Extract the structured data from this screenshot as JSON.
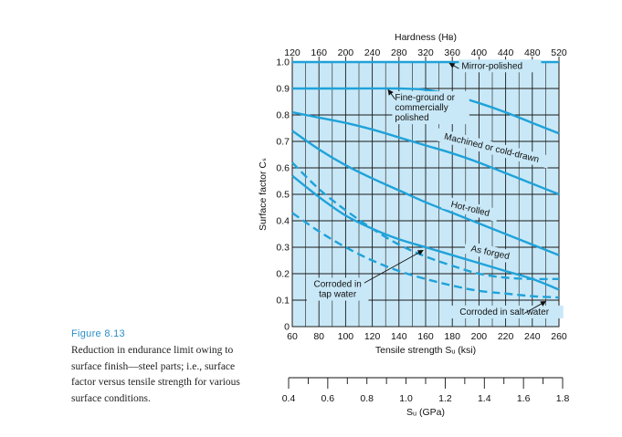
{
  "figure": {
    "number": "Figure 8.13",
    "caption": "Reduction in endurance limit owing to surface finish—steel parts; i.e., surface factor versus tensile strength for various surface conditions."
  },
  "chart_data": {
    "type": "line",
    "title": "",
    "xlabel": "Tensile strength Sᵤ (ksi)",
    "ylabel": "Surface factor Cₛ",
    "top_axis_label": "Hardness (Hʙ)",
    "bottom_axis2_label": "Sᵤ (GPa)",
    "xlim": [
      60,
      260
    ],
    "ylim": [
      0,
      1.0
    ],
    "x_ticks": [
      60,
      80,
      100,
      120,
      140,
      160,
      180,
      200,
      220,
      240,
      260
    ],
    "y_ticks": [
      0,
      0.1,
      0.2,
      0.3,
      0.4,
      0.5,
      0.6,
      0.7,
      0.8,
      0.9,
      1.0
    ],
    "y_tick_labels": [
      "0",
      "0.1",
      "0.2",
      "0.3",
      "0.4",
      "0.5",
      "0.6",
      "0.7",
      "0.8",
      "0.9",
      "1.0"
    ],
    "hardness_ticks": [
      120,
      160,
      200,
      240,
      280,
      320,
      360,
      400,
      440,
      480,
      520
    ],
    "gpa_ticks": [
      0.4,
      0.6,
      0.8,
      1.0,
      1.2,
      1.4,
      1.6,
      1.8
    ],
    "gpa_tick_labels": [
      "0.4",
      "0.6",
      "0.8",
      "1.0",
      "1.2",
      "1.4",
      "1.6",
      "1.8"
    ],
    "grid": true,
    "plot_background": "#c9e8f7",
    "line_color": "#1fa2d9",
    "series": [
      {
        "key": "mirror",
        "style": "solid",
        "x": [
          60,
          100,
          140,
          180,
          220,
          260
        ],
        "y": [
          1.0,
          1.0,
          1.0,
          1.0,
          1.0,
          1.0
        ]
      },
      {
        "key": "fine",
        "style": "solid",
        "x": [
          60,
          100,
          140,
          160,
          180,
          200,
          220,
          240,
          260
        ],
        "y": [
          0.9,
          0.9,
          0.9,
          0.895,
          0.875,
          0.845,
          0.81,
          0.77,
          0.73
        ]
      },
      {
        "key": "machined",
        "style": "solid",
        "x": [
          60,
          80,
          100,
          120,
          140,
          160,
          180,
          200,
          220,
          240,
          260
        ],
        "y": [
          0.81,
          0.79,
          0.77,
          0.745,
          0.715,
          0.685,
          0.655,
          0.62,
          0.58,
          0.54,
          0.5
        ]
      },
      {
        "key": "hot_rolled",
        "style": "solid",
        "x": [
          60,
          80,
          100,
          120,
          140,
          160,
          180,
          200,
          220,
          240,
          260
        ],
        "y": [
          0.74,
          0.67,
          0.61,
          0.56,
          0.515,
          0.47,
          0.43,
          0.39,
          0.35,
          0.31,
          0.27
        ]
      },
      {
        "key": "as_forged",
        "style": "solid",
        "x": [
          60,
          80,
          100,
          120,
          140,
          160,
          180,
          200,
          220,
          240,
          260
        ],
        "y": [
          0.57,
          0.49,
          0.42,
          0.37,
          0.33,
          0.3,
          0.27,
          0.24,
          0.21,
          0.18,
          0.14
        ]
      },
      {
        "key": "tap_water",
        "style": "dashed",
        "x": [
          60,
          80,
          100,
          120,
          140,
          160,
          180,
          200,
          220,
          240,
          260
        ],
        "y": [
          0.62,
          0.52,
          0.44,
          0.37,
          0.31,
          0.265,
          0.23,
          0.2,
          0.185,
          0.18,
          0.18
        ]
      },
      {
        "key": "salt_water",
        "style": "dashed",
        "x": [
          60,
          80,
          100,
          120,
          140,
          160,
          180,
          200,
          220,
          240,
          260
        ],
        "y": [
          0.43,
          0.36,
          0.3,
          0.25,
          0.21,
          0.18,
          0.155,
          0.135,
          0.125,
          0.115,
          0.11
        ]
      }
    ],
    "annotations": [
      {
        "key": "mirror",
        "text": "Mirror-polished",
        "x": 187,
        "y": 0.975
      },
      {
        "key": "fine",
        "text": "Fine-ground or\ncommercially\npolished",
        "x": 137,
        "y": 0.855
      },
      {
        "key": "machined",
        "text": "Machined or cold-drawn",
        "x": 209,
        "y": 0.665
      },
      {
        "key": "hot_rolled",
        "text": "Hot-rolled",
        "x": 193,
        "y": 0.435
      },
      {
        "key": "as_forged",
        "text": "As forged",
        "x": 208,
        "y": 0.27
      },
      {
        "key": "tap_water",
        "text": "Corroded in\ntap water",
        "x": 94,
        "y": 0.15
      },
      {
        "key": "salt_water",
        "text": "Corroded in salt water",
        "x": 219,
        "y": 0.045
      }
    ]
  }
}
